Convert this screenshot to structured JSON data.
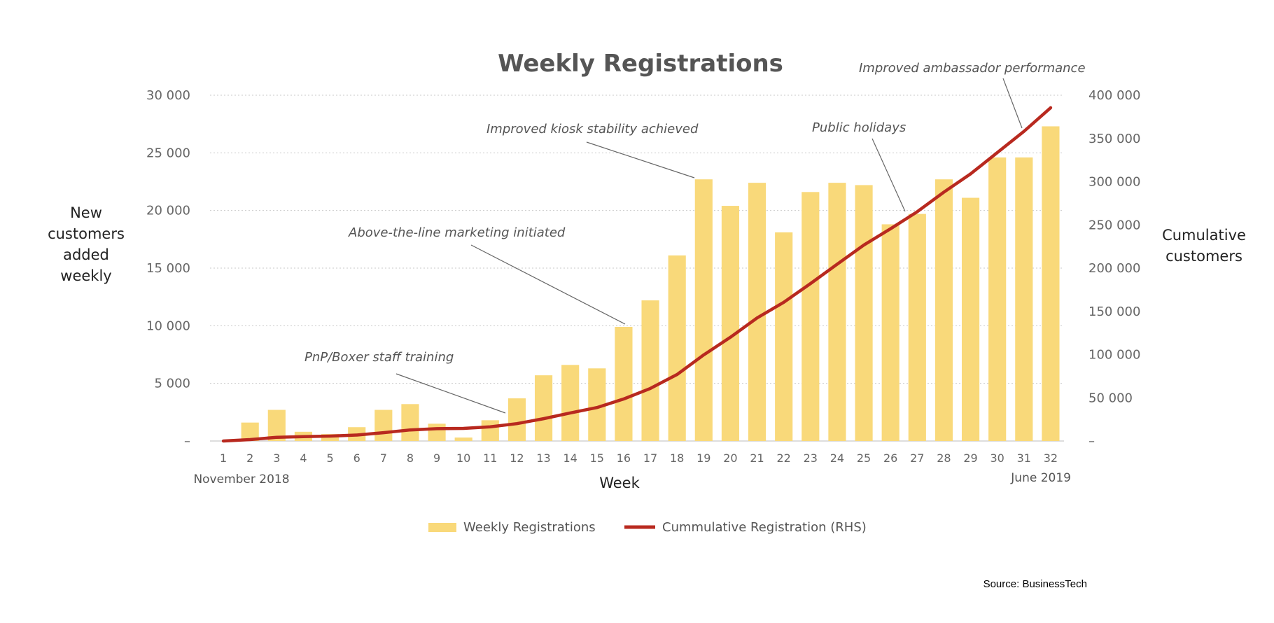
{
  "chart_data": {
    "type": "bar",
    "title": "Weekly Registrations",
    "xlabel": "Week",
    "ylabel": "New customers added weekly",
    "ylabel_right": "Cumulative customers",
    "x_start_label": "November 2018",
    "x_end_label": "June 2019",
    "categories": [
      "1",
      "2",
      "3",
      "4",
      "5",
      "6",
      "7",
      "8",
      "9",
      "10",
      "11",
      "12",
      "13",
      "14",
      "15",
      "16",
      "17",
      "18",
      "19",
      "20",
      "21",
      "22",
      "23",
      "24",
      "25",
      "26",
      "27",
      "28",
      "29",
      "30",
      "31",
      "32"
    ],
    "ylim": [
      0,
      30000
    ],
    "y2lim": [
      0,
      400000
    ],
    "yticks": [
      "–",
      "5 000",
      "10 000",
      "15 000",
      "20 000",
      "25 000",
      "30 000"
    ],
    "y2ticks": [
      "–",
      "50 000",
      "100 000",
      "150 000",
      "200 000",
      "250 000",
      "300 000",
      "350 000",
      "400 000"
    ],
    "grid": true,
    "legend_position": "bottom",
    "series": [
      {
        "name": "Weekly Registrations",
        "type": "bar",
        "axis": "left",
        "color": "#f9d97a",
        "values": [
          0,
          1600,
          2700,
          800,
          600,
          1200,
          2700,
          3200,
          1500,
          300,
          1800,
          3700,
          5700,
          6600,
          6300,
          9900,
          12200,
          16100,
          22700,
          20400,
          22400,
          18100,
          21600,
          22400,
          22200,
          18800,
          19700,
          22700,
          21100,
          24600,
          24600,
          27300
        ]
      },
      {
        "name": "Cummulative Registration (RHS)",
        "type": "line",
        "axis": "right",
        "color": "#b8291f",
        "values": [
          0,
          1600,
          4300,
          5100,
          5700,
          6900,
          9600,
          12800,
          14300,
          14600,
          16400,
          20100,
          25800,
          32400,
          38700,
          48600,
          60800,
          76900,
          99600,
          120000,
          142400,
          160500,
          182100,
          204500,
          226700,
          245500,
          265200,
          287900,
          309000,
          333600,
          358200,
          385500
        ]
      }
    ],
    "annotations": [
      {
        "text": "PnP/Boxer staff training",
        "week": 12
      },
      {
        "text": "Above-the-line marketing initiated",
        "week": 16
      },
      {
        "text": "Improved kiosk stability achieved",
        "week": 19
      },
      {
        "text": "Public holidays",
        "week": 26
      },
      {
        "text": "Improved ambassador performance",
        "week": 31
      }
    ]
  },
  "source": "Source: BusinessTech"
}
